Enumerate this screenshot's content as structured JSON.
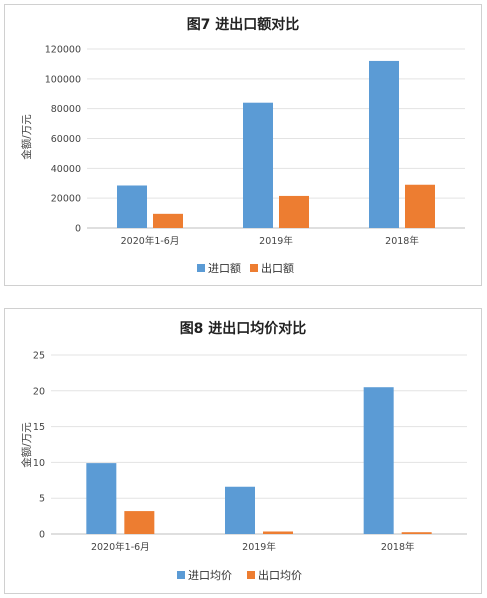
{
  "chart_data": [
    {
      "type": "bar",
      "title": "图7  进出口额对比",
      "xlabel": "",
      "ylabel": "金额/万元",
      "categories": [
        "2020年1-6月",
        "2019年",
        "2018年"
      ],
      "series": [
        {
          "name": "进口额",
          "color": "#5B9BD5",
          "values": [
            28500,
            84000,
            112000
          ]
        },
        {
          "name": "出口额",
          "color": "#ED7D31",
          "values": [
            9500,
            21500,
            29000
          ]
        }
      ],
      "ylim": [
        0,
        120000
      ],
      "yticks": [
        "0",
        "20000",
        "40000",
        "60000",
        "80000",
        "100000",
        "120000"
      ],
      "grid": true,
      "legend": "bottom"
    },
    {
      "type": "bar",
      "title": "图8  进出口均价对比",
      "xlabel": "",
      "ylabel": "金额/万元",
      "categories": [
        "2020年1-6月",
        "2019年",
        "2018年"
      ],
      "series": [
        {
          "name": "进口均价",
          "color": "#5B9BD5",
          "values": [
            9.9,
            6.6,
            20.5
          ]
        },
        {
          "name": "出口均价",
          "color": "#ED7D31",
          "values": [
            3.2,
            0.35,
            0.25
          ]
        }
      ],
      "ylim": [
        0,
        25
      ],
      "yticks": [
        "0",
        "5",
        "10",
        "15",
        "20",
        "25"
      ],
      "grid": true,
      "legend": "bottom"
    }
  ]
}
